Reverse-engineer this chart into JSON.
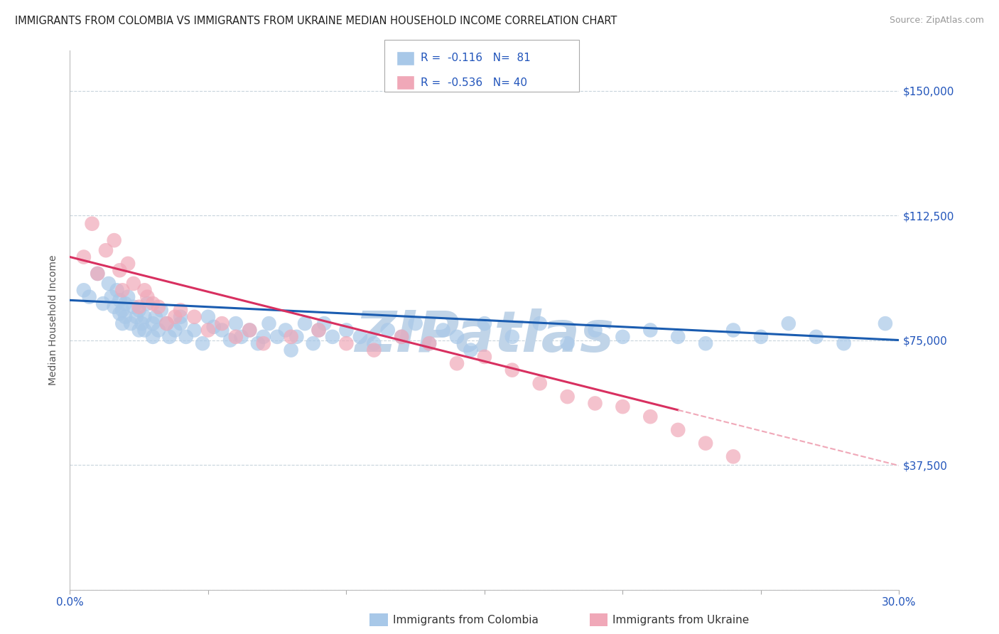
{
  "title": "IMMIGRANTS FROM COLOMBIA VS IMMIGRANTS FROM UKRAINE MEDIAN HOUSEHOLD INCOME CORRELATION CHART",
  "source": "Source: ZipAtlas.com",
  "ylabel": "Median Household Income",
  "xlim": [
    0.0,
    0.3
  ],
  "ylim": [
    0,
    162000
  ],
  "yticks": [
    0,
    37500,
    75000,
    112500,
    150000
  ],
  "ytick_labels_right": [
    "",
    "$37,500",
    "$75,000",
    "$112,500",
    "$150,000"
  ],
  "xticks": [
    0.0,
    0.05,
    0.1,
    0.15,
    0.2,
    0.25,
    0.3
  ],
  "xtick_labels": [
    "0.0%",
    "",
    "",
    "",
    "",
    "",
    "30.0%"
  ],
  "colombia_color": "#a8c8e8",
  "ukraine_color": "#f0a8b8",
  "colombia_R": -0.116,
  "colombia_N": 81,
  "ukraine_R": -0.536,
  "ukraine_N": 40,
  "legend_R_color": "#2255bb",
  "watermark": "ZIPatlas",
  "watermark_color": "#c0d4e8",
  "colombia_line_color": "#1a5cb0",
  "ukraine_line_color": "#d83060",
  "background_color": "#ffffff",
  "grid_color": "#c8d4dc",
  "title_fontsize": 10.5,
  "axis_label_fontsize": 10,
  "tick_label_color": "#2255bb",
  "tick_label_fontsize": 11,
  "colombia_scatter_x": [
    0.005,
    0.007,
    0.01,
    0.012,
    0.014,
    0.015,
    0.016,
    0.017,
    0.018,
    0.018,
    0.019,
    0.019,
    0.02,
    0.02,
    0.021,
    0.022,
    0.023,
    0.024,
    0.025,
    0.025,
    0.026,
    0.027,
    0.027,
    0.028,
    0.03,
    0.03,
    0.031,
    0.032,
    0.033,
    0.035,
    0.036,
    0.038,
    0.04,
    0.04,
    0.042,
    0.045,
    0.048,
    0.05,
    0.052,
    0.055,
    0.058,
    0.06,
    0.062,
    0.065,
    0.068,
    0.07,
    0.072,
    0.075,
    0.078,
    0.08,
    0.082,
    0.085,
    0.088,
    0.09,
    0.092,
    0.095,
    0.1,
    0.105,
    0.11,
    0.115,
    0.12,
    0.125,
    0.13,
    0.135,
    0.14,
    0.145,
    0.15,
    0.16,
    0.17,
    0.18,
    0.19,
    0.2,
    0.21,
    0.22,
    0.23,
    0.24,
    0.25,
    0.26,
    0.27,
    0.28,
    0.295
  ],
  "colombia_scatter_y": [
    90000,
    88000,
    95000,
    86000,
    92000,
    88000,
    85000,
    90000,
    83000,
    87000,
    80000,
    84000,
    82000,
    86000,
    88000,
    80000,
    85000,
    82000,
    78000,
    84000,
    80000,
    82000,
    78000,
    86000,
    76000,
    80000,
    82000,
    78000,
    84000,
    80000,
    76000,
    78000,
    80000,
    82000,
    76000,
    78000,
    74000,
    82000,
    79000,
    78000,
    75000,
    80000,
    76000,
    78000,
    74000,
    76000,
    80000,
    76000,
    78000,
    72000,
    76000,
    80000,
    74000,
    78000,
    80000,
    76000,
    78000,
    76000,
    74000,
    78000,
    76000,
    80000,
    74000,
    78000,
    76000,
    72000,
    80000,
    76000,
    80000,
    74000,
    78000,
    76000,
    78000,
    76000,
    74000,
    78000,
    76000,
    80000,
    76000,
    74000,
    80000
  ],
  "ukraine_scatter_x": [
    0.005,
    0.008,
    0.01,
    0.013,
    0.016,
    0.018,
    0.019,
    0.021,
    0.023,
    0.025,
    0.027,
    0.028,
    0.03,
    0.032,
    0.035,
    0.038,
    0.04,
    0.045,
    0.05,
    0.055,
    0.06,
    0.065,
    0.07,
    0.08,
    0.09,
    0.1,
    0.11,
    0.12,
    0.13,
    0.14,
    0.15,
    0.16,
    0.17,
    0.18,
    0.19,
    0.2,
    0.21,
    0.22,
    0.23,
    0.24
  ],
  "ukraine_scatter_y": [
    100000,
    110000,
    95000,
    102000,
    105000,
    96000,
    90000,
    98000,
    92000,
    85000,
    90000,
    88000,
    86000,
    85000,
    80000,
    82000,
    84000,
    82000,
    78000,
    80000,
    76000,
    78000,
    74000,
    76000,
    78000,
    74000,
    72000,
    76000,
    74000,
    68000,
    70000,
    66000,
    62000,
    58000,
    56000,
    55000,
    52000,
    48000,
    44000,
    40000
  ]
}
